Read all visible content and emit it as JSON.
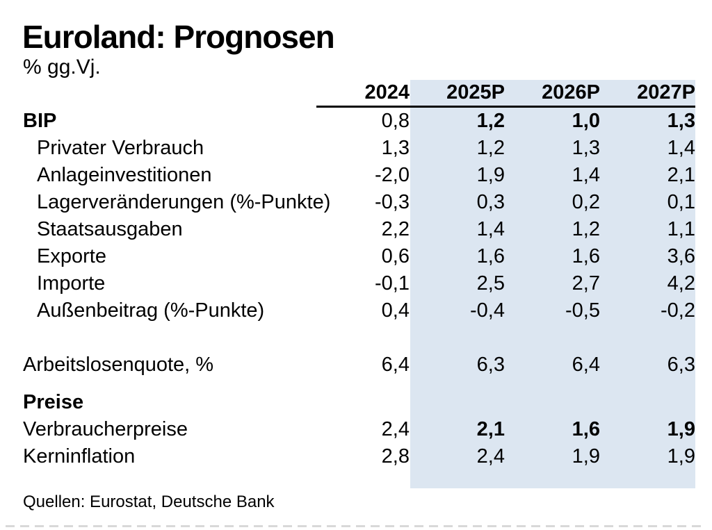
{
  "chart_data": {
    "type": "table",
    "title": "Euroland: Prognosen",
    "subtitle": "% gg.Vj.",
    "columns": [
      "2024",
      "2025P",
      "2026P",
      "2027P"
    ],
    "highlighted_columns": [
      "2025P",
      "2026P",
      "2027P"
    ],
    "rows": [
      {
        "label": "BIP",
        "label_bold": true,
        "indent": false,
        "values": [
          "0,8",
          "1,2",
          "1,0",
          "1,3"
        ],
        "bold": [
          false,
          true,
          true,
          true
        ]
      },
      {
        "label": "Privater Verbrauch",
        "indent": true,
        "values": [
          "1,3",
          "1,2",
          "1,3",
          "1,4"
        ]
      },
      {
        "label": "Anlageinvestitionen",
        "indent": true,
        "values": [
          "-2,0",
          "1,9",
          "1,4",
          "2,1"
        ]
      },
      {
        "label": "Lagerveränderungen (%-Punkte)",
        "indent": true,
        "values": [
          "-0,3",
          "0,3",
          "0,2",
          "0,1"
        ]
      },
      {
        "label": "Staatsausgaben",
        "indent": true,
        "values": [
          "2,2",
          "1,4",
          "1,2",
          "1,1"
        ]
      },
      {
        "label": "Exporte",
        "indent": true,
        "values": [
          "0,6",
          "1,6",
          "1,6",
          "3,6"
        ]
      },
      {
        "label": "Importe",
        "indent": true,
        "values": [
          "-0,1",
          "2,5",
          "2,7",
          "4,2"
        ]
      },
      {
        "label": "Außenbeitrag (%-Punkte)",
        "indent": true,
        "values": [
          "0,4",
          "-0,4",
          "-0,5",
          "-0,2"
        ]
      },
      {
        "type": "spacer"
      },
      {
        "label": "Arbeitslosenquote, %",
        "indent": false,
        "values": [
          "6,4",
          "6,3",
          "6,4",
          "6,3"
        ]
      },
      {
        "type": "spacer-small"
      },
      {
        "label": "Preise",
        "label_bold": true,
        "indent": false,
        "values": [
          "",
          "",
          "",
          ""
        ]
      },
      {
        "label": "Verbraucherpreise",
        "indent": false,
        "values": [
          "2,4",
          "2,1",
          "1,6",
          "1,9"
        ],
        "bold": [
          false,
          true,
          true,
          true
        ]
      },
      {
        "label": "Kerninflation",
        "indent": false,
        "values": [
          "2,8",
          "2,4",
          "1,9",
          "1,9"
        ]
      }
    ],
    "source": "Quellen: Eurostat, Deutsche Bank",
    "colors": {
      "highlight_band": "#dce6f1",
      "text": "#000000",
      "rule": "#000000"
    },
    "layout": {
      "grid": "off",
      "value_alignment": "right",
      "decimal_separator": ","
    }
  }
}
